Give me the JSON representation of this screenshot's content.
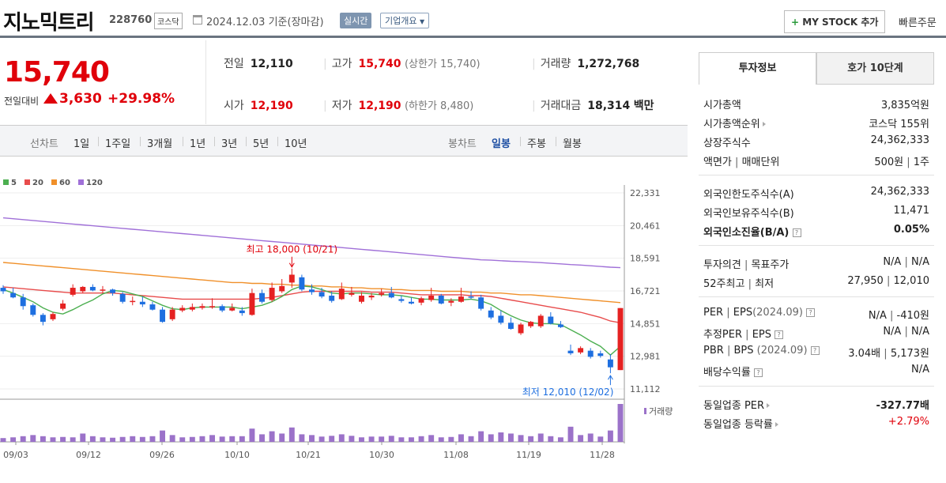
{
  "header": {
    "name": "지노믹트리",
    "code": "228760",
    "market": "코스닥",
    "date": "2024.12.03",
    "basis": "기준(장마감)",
    "realtime": "실시간",
    "corp_info": "기업개요",
    "mystock_plus": "+",
    "mystock": "MY STOCK 추가",
    "quick_order": "빠른주문"
  },
  "price": {
    "current": "15,740",
    "change_label": "전일대비",
    "change": "3,630",
    "change_pct": "+29.98%"
  },
  "stats": {
    "prev_label": "전일",
    "prev": "12,110",
    "high_label": "고가",
    "high": "15,740",
    "high_note": "(상한가 15,740)",
    "vol_label": "거래량",
    "vol": "1,272,768",
    "open_label": "시가",
    "open": "12,190",
    "low_label": "저가",
    "low": "12,190",
    "low_note": "(하한가 8,480)",
    "amt_label": "거래대금",
    "amt": "18,314",
    "amt_unit": "백만"
  },
  "toolbar": {
    "line_label": "선차트",
    "periods": [
      "1일",
      "1주일",
      "3개월",
      "1년",
      "3년",
      "5년",
      "10년"
    ],
    "candle_label": "봉차트",
    "candle": [
      "일봉",
      "주봉",
      "월봉"
    ],
    "active_candle": "일봉"
  },
  "chart_data": {
    "type": "candlestick",
    "legend": [
      {
        "name": "5",
        "color": "#4caf50"
      },
      {
        "name": "20",
        "color": "#e84c4c"
      },
      {
        "name": "60",
        "color": "#f0902a"
      },
      {
        "name": "120",
        "color": "#a070d8"
      }
    ],
    "yticks": [
      "22,331",
      "20,461",
      "18,591",
      "16,721",
      "14,851",
      "12,981",
      "11,112"
    ],
    "ylim": [
      11112,
      22331
    ],
    "xticks": [
      "09/03",
      "09/12",
      "09/26",
      "10/10",
      "10/21",
      "10/30",
      "11/08",
      "11/19",
      "11/28"
    ],
    "annotation_high": "최고 18,000 (10/21)",
    "annotation_low": "최저 12,010 (12/02)",
    "volume_label": "거래량",
    "candles": [
      [
        16900,
        17050,
        16550,
        16700
      ],
      [
        16600,
        16900,
        16300,
        16350
      ],
      [
        16350,
        16550,
        15650,
        15850
      ],
      [
        15900,
        16000,
        15250,
        15350
      ],
      [
        15350,
        15450,
        14750,
        14950
      ],
      [
        15100,
        15500,
        15000,
        15400
      ],
      [
        15700,
        16200,
        15600,
        16000
      ],
      [
        16500,
        17100,
        16400,
        16900
      ],
      [
        16700,
        17000,
        16600,
        16950
      ],
      [
        16950,
        17100,
        16700,
        16750
      ],
      [
        16750,
        17000,
        16600,
        16800
      ],
      [
        16800,
        16850,
        16450,
        16600
      ],
      [
        16550,
        16650,
        16000,
        16100
      ],
      [
        16100,
        16400,
        15900,
        16150
      ],
      [
        16100,
        16400,
        15800,
        15950
      ],
      [
        15950,
        16100,
        15600,
        15650
      ],
      [
        15650,
        15800,
        14900,
        14950
      ],
      [
        15100,
        15800,
        15000,
        15650
      ],
      [
        15600,
        15900,
        15500,
        15750
      ],
      [
        15650,
        16000,
        15550,
        15800
      ],
      [
        15750,
        16000,
        15650,
        15850
      ],
      [
        15800,
        16300,
        15700,
        15850
      ],
      [
        15850,
        15950,
        15500,
        15600
      ],
      [
        15600,
        16000,
        15550,
        15750
      ],
      [
        15600,
        15800,
        15300,
        15450
      ],
      [
        15350,
        16850,
        15300,
        16600
      ],
      [
        16600,
        16800,
        16000,
        16100
      ],
      [
        16200,
        17200,
        16100,
        16900
      ],
      [
        16700,
        17400,
        16600,
        17000
      ],
      [
        17200,
        18000,
        16900,
        17650
      ],
      [
        17500,
        17650,
        16700,
        16800
      ],
      [
        16800,
        17100,
        16500,
        16650
      ],
      [
        16650,
        16900,
        16300,
        16400
      ],
      [
        16450,
        16700,
        16050,
        16150
      ],
      [
        16250,
        17200,
        16200,
        16850
      ],
      [
        16500,
        16950,
        16400,
        16600
      ],
      [
        16100,
        16650,
        16000,
        16450
      ],
      [
        16350,
        16600,
        16200,
        16450
      ],
      [
        16500,
        16850,
        16400,
        16600
      ],
      [
        16600,
        16950,
        16300,
        16350
      ],
      [
        16250,
        16450,
        16050,
        16150
      ],
      [
        16100,
        16350,
        15950,
        16000
      ],
      [
        16050,
        16400,
        15900,
        16300
      ],
      [
        16200,
        16900,
        16100,
        16450
      ],
      [
        16450,
        16550,
        15950,
        16000
      ],
      [
        16050,
        16300,
        15850,
        16150
      ],
      [
        16100,
        16900,
        16050,
        16400
      ],
      [
        16400,
        16700,
        16250,
        16350
      ],
      [
        16350,
        16500,
        15600,
        15700
      ],
      [
        15600,
        15800,
        15100,
        15200
      ],
      [
        15300,
        15600,
        14800,
        14900
      ],
      [
        14900,
        15200,
        14500,
        14550
      ],
      [
        14300,
        14900,
        14200,
        14800
      ],
      [
        14700,
        15000,
        14600,
        14950
      ],
      [
        14700,
        15400,
        14600,
        15300
      ],
      [
        15250,
        15500,
        14800,
        14850
      ],
      [
        14800,
        15000,
        14600,
        14650
      ],
      [
        13300,
        13650,
        13050,
        13150
      ],
      [
        13200,
        13550,
        13100,
        13450
      ],
      [
        13300,
        13450,
        12850,
        12950
      ],
      [
        13150,
        13300,
        12900,
        13000
      ],
      [
        12800,
        13100,
        12010,
        12350
      ],
      [
        12190,
        15740,
        12190,
        15740
      ]
    ],
    "ma5": [
      16800,
      16600,
      16350,
      16100,
      15750,
      15500,
      15400,
      15650,
      15950,
      16200,
      16550,
      16750,
      16700,
      16550,
      16400,
      16150,
      15900,
      15700,
      15650,
      15750,
      15800,
      15800,
      15800,
      15800,
      15700,
      15800,
      15900,
      16100,
      16400,
      16800,
      17000,
      16950,
      16800,
      16600,
      16550,
      16600,
      16600,
      16550,
      16500,
      16500,
      16450,
      16350,
      16250,
      16250,
      16200,
      16200,
      16200,
      16250,
      16150,
      15950,
      15600,
      15300,
      15050,
      14900,
      14850,
      14850,
      14800,
      14500,
      14200,
      13850,
      13550,
      13050,
      13550
    ],
    "ma20": [
      16950,
      16900,
      16850,
      16800,
      16750,
      16700,
      16650,
      16600,
      16600,
      16600,
      16600,
      16600,
      16550,
      16500,
      16450,
      16400,
      16350,
      16300,
      16250,
      16250,
      16250,
      16250,
      16250,
      16250,
      16250,
      16250,
      16300,
      16350,
      16450,
      16550,
      16650,
      16700,
      16700,
      16700,
      16700,
      16700,
      16700,
      16650,
      16650,
      16650,
      16600,
      16550,
      16500,
      16500,
      16500,
      16500,
      16500,
      16450,
      16450,
      16400,
      16300,
      16200,
      16100,
      16000,
      15900,
      15800,
      15700,
      15600,
      15500,
      15350,
      15200,
      15000,
      14900
    ],
    "ma60": [
      18350,
      18300,
      18250,
      18200,
      18150,
      18100,
      18050,
      18000,
      17950,
      17900,
      17850,
      17800,
      17750,
      17700,
      17650,
      17600,
      17550,
      17500,
      17450,
      17400,
      17350,
      17300,
      17250,
      17200,
      17200,
      17150,
      17150,
      17100,
      17100,
      17050,
      17050,
      17000,
      17000,
      16950,
      16950,
      16900,
      16900,
      16850,
      16850,
      16800,
      16800,
      16750,
      16750,
      16750,
      16700,
      16700,
      16700,
      16650,
      16650,
      16600,
      16600,
      16550,
      16500,
      16500,
      16450,
      16400,
      16350,
      16300,
      16250,
      16200,
      16150,
      16100,
      16050
    ],
    "ma120": [
      20900,
      20850,
      20800,
      20750,
      20700,
      20650,
      20600,
      20550,
      20500,
      20450,
      20400,
      20350,
      20300,
      20250,
      20200,
      20150,
      20100,
      20050,
      20000,
      19950,
      19900,
      19850,
      19800,
      19750,
      19700,
      19650,
      19600,
      19550,
      19500,
      19450,
      19400,
      19350,
      19300,
      19250,
      19200,
      19150,
      19100,
      19050,
      19000,
      18950,
      18900,
      18850,
      18800,
      18750,
      18700,
      18650,
      18600,
      18550,
      18500,
      18480,
      18450,
      18420,
      18400,
      18370,
      18340,
      18300,
      18270,
      18230,
      18200,
      18160,
      18120,
      18080,
      18050
    ],
    "volume": [
      0.1,
      0.12,
      0.15,
      0.18,
      0.15,
      0.12,
      0.13,
      0.12,
      0.22,
      0.15,
      0.12,
      0.11,
      0.13,
      0.15,
      0.13,
      0.15,
      0.3,
      0.18,
      0.12,
      0.13,
      0.15,
      0.18,
      0.14,
      0.15,
      0.15,
      0.35,
      0.2,
      0.28,
      0.22,
      0.38,
      0.2,
      0.18,
      0.14,
      0.16,
      0.2,
      0.16,
      0.12,
      0.14,
      0.14,
      0.16,
      0.12,
      0.12,
      0.15,
      0.18,
      0.12,
      0.13,
      0.2,
      0.15,
      0.28,
      0.2,
      0.25,
      0.22,
      0.18,
      0.15,
      0.22,
      0.15,
      0.12,
      0.4,
      0.18,
      0.22,
      0.14,
      0.3,
      1.0
    ]
  },
  "panel": {
    "tab_info": "투자정보",
    "tab_hoga": "호가 10단계",
    "mcap_k": "시가총액",
    "mcap_v": "3,835억원",
    "mrank_k": "시가총액순위",
    "mrank_v": "코스닥 155위",
    "shares_k": "상장주식수",
    "shares_v": "24,362,333",
    "par_k": "액면가",
    "par_sep": "|",
    "unit_k": "매매단위",
    "par_v": "500원",
    "unit_v": "1주",
    "flim_k": "외국인한도주식수(A)",
    "flim_v": "24,362,333",
    "fown_k": "외국인보유주식수(B)",
    "fown_v": "11,471",
    "frate_k": "외국인소진율(B/A)",
    "frate_v": "0.05%",
    "op_k": "투자의견",
    "tp_k": "목표주가",
    "op_v": "N/A",
    "tp_v": "N/A",
    "w52h_k": "52주최고",
    "w52l_k": "최저",
    "w52h_v": "27,950",
    "w52l_v": "12,010",
    "per_k": "PER",
    "eps_k": "EPS",
    "per_year": "(2024.09)",
    "per_v": "N/A",
    "eps_v": "-410원",
    "eper_k": "추정PER",
    "eeps_k": "EPS",
    "eper_v": "N/A",
    "eeps_v": "N/A",
    "pbr_k": "PBR",
    "bps_k": "BPS",
    "pbr_year": "(2024.09)",
    "pbr_v": "3.04배",
    "bps_v": "5,173원",
    "div_k": "배당수익률",
    "div_v": "N/A",
    "sper_k": "동일업종 PER",
    "sper_v": "-327.77배",
    "srate_k": "동일업종 등락률",
    "srate_v": "+2.79%",
    "qm": "?"
  }
}
